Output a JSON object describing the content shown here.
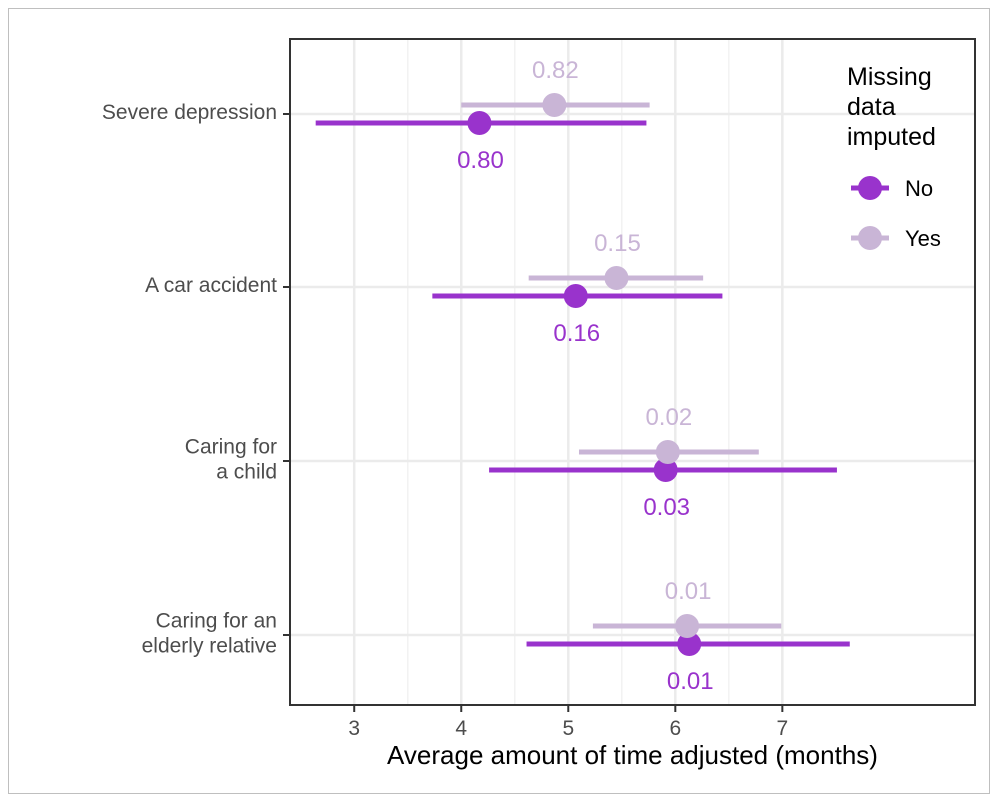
{
  "chart_data": {
    "type": "forest",
    "title": "",
    "xlabel": "Average amount of time adjusted (months)",
    "ylabel": "",
    "xlim": [
      2.4,
      8.8
    ],
    "xticks": [
      3,
      4,
      5,
      6,
      7
    ],
    "grid": true,
    "legend_placement": "top-right",
    "legend_title": [
      "Missing",
      "data",
      "imputed"
    ],
    "categories": [
      [
        "Severe depression"
      ],
      [
        "A car accident"
      ],
      [
        "Caring for",
        "a child"
      ],
      [
        "Caring for an",
        "elderly relative"
      ]
    ],
    "series": [
      {
        "name": "No",
        "color": "#9933CC",
        "estimate": [
          4.17,
          5.07,
          5.91,
          6.13
        ],
        "lower": [
          2.64,
          3.73,
          4.26,
          4.61
        ],
        "upper": [
          5.73,
          6.44,
          7.51,
          7.63
        ],
        "labels": [
          "0.80",
          "0.16",
          "0.03",
          "0.01"
        ]
      },
      {
        "name": "Yes",
        "color": "#C9B5D6",
        "estimate": [
          4.87,
          5.45,
          5.93,
          6.11
        ],
        "lower": [
          4.0,
          4.63,
          5.1,
          5.23
        ],
        "upper": [
          5.76,
          6.26,
          6.78,
          6.99
        ],
        "labels": [
          "0.82",
          "0.15",
          "0.02",
          "0.01"
        ]
      }
    ]
  }
}
